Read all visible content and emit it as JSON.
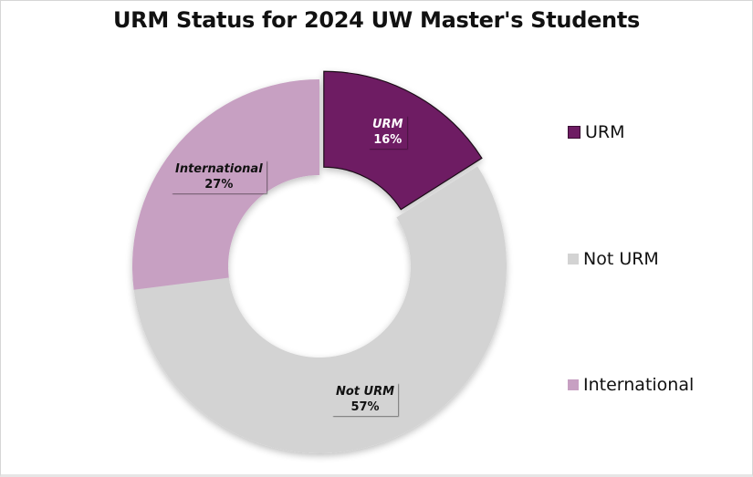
{
  "title": "URM Status for 2024 UW Master's Students",
  "chart_data": {
    "type": "pie",
    "subtype": "donut",
    "title": "URM Status for 2024 UW Master's Students",
    "categories": [
      "URM",
      "Not URM",
      "International"
    ],
    "values": [
      16,
      57,
      27
    ],
    "unit": "%",
    "colors": [
      "#6e1c63",
      "#d3d3d3",
      "#c7a0c2"
    ],
    "data_labels": [
      "URM 16%",
      "Not URM 57%",
      "International 27%"
    ],
    "exploded": [
      "URM"
    ],
    "legend_position": "right"
  },
  "labels": {
    "urm": {
      "name": "URM",
      "pct": "16%"
    },
    "not_urm": {
      "name": "Not URM",
      "pct": "57%"
    },
    "international": {
      "name": "International",
      "pct": "27%"
    }
  },
  "legend": {
    "items": [
      {
        "label": "URM",
        "color": "#6e1c63"
      },
      {
        "label": "Not URM",
        "color": "#d3d3d3"
      },
      {
        "label": "International",
        "color": "#c7a0c2"
      }
    ]
  }
}
